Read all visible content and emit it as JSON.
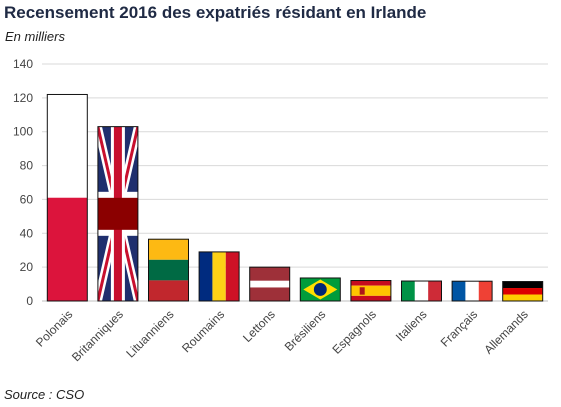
{
  "header": {
    "title": "Recensement 2016 des expatriés résidant en Irlande",
    "subtitle": "En milliers"
  },
  "footer": {
    "source": "Source : CSO"
  },
  "colors": {
    "grid": "#d9d9d9",
    "axis": "#bfbfbf",
    "text": "#444444"
  },
  "chart_data": {
    "type": "bar",
    "title": "Recensement 2016 des expatriés résidant en Irlande",
    "subtitle": "En milliers",
    "xlabel": "",
    "ylabel": "",
    "ylim": [
      0,
      140
    ],
    "yticks": [
      0,
      20,
      40,
      60,
      80,
      100,
      120,
      140
    ],
    "grid": true,
    "categories": [
      "Polonais",
      "Britanniques",
      "Lituanniens",
      "Roumains",
      "Lettons",
      "Brésiliens",
      "Espagnols",
      "Italiens",
      "Français",
      "Allemands"
    ],
    "values": [
      122,
      103,
      36.5,
      29,
      20,
      13.6,
      12.1,
      11.8,
      11.7,
      11.5
    ],
    "fill": [
      "flag-poland",
      "flag-uk",
      "flag-lithuania",
      "flag-romania",
      "flag-latvia",
      "flag-brazil",
      "flag-spain",
      "flag-italy",
      "flag-france",
      "flag-germany"
    ]
  }
}
